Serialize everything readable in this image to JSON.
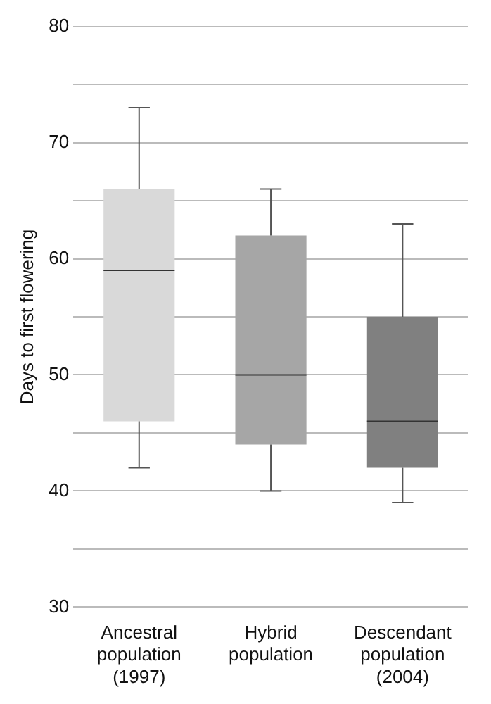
{
  "chart_data": {
    "type": "box",
    "ylabel": "Days to first flowering",
    "categories": [
      "Ancestral population (1997)",
      "Hybrid population",
      "Descendant population (2004)"
    ],
    "colors": [
      "#d9d9d9",
      "#a6a6a6",
      "#808080"
    ],
    "boxes": [
      {
        "low": 42,
        "q1": 46,
        "median": 59,
        "q3": 66,
        "high": 73
      },
      {
        "low": 40,
        "q1": 44,
        "median": 50,
        "q3": 62,
        "high": 66
      },
      {
        "low": 39,
        "q1": 42,
        "median": 46,
        "q3": 55,
        "high": 63
      }
    ],
    "ylim": [
      30,
      80
    ],
    "yticks": [
      30,
      {
        "value": 35,
        "label": null
      },
      40,
      {
        "value": 45,
        "label": null
      },
      50,
      {
        "value": 55,
        "label": null
      },
      60,
      {
        "value": 65,
        "label": null
      },
      70,
      {
        "value": 75,
        "label": null
      },
      80
    ],
    "grid": "y"
  }
}
